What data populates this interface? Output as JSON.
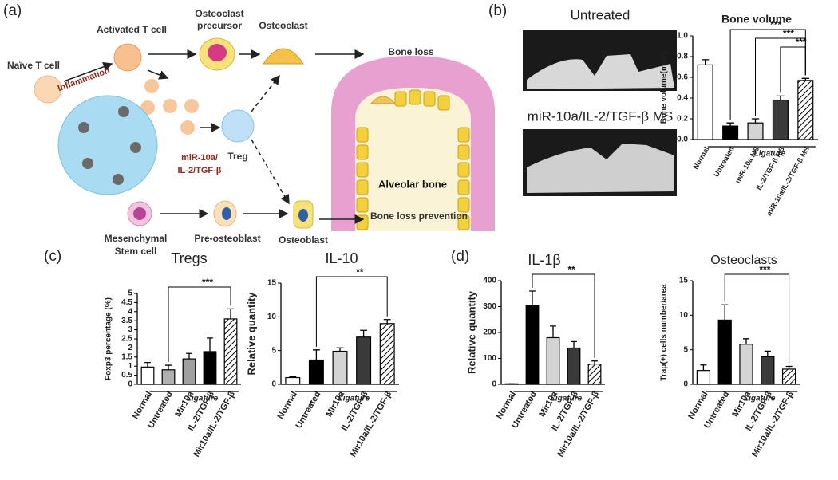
{
  "diagram": {
    "panel_labels": [
      "(a)",
      "(b)",
      "(c)",
      "(d)"
    ],
    "naive_t_cell": "Naïve T cell",
    "activated_t_cell": "Activated T cell",
    "inflammation": "Inflammation",
    "osteoclast_precursor": [
      "Osteoclast",
      "precursor"
    ],
    "osteoclast": "Osteoclast",
    "bone_loss": "Bone loss",
    "treatment": [
      "miR-10a/",
      "IL-2/TGF-β"
    ],
    "treg": "Treg",
    "alveolar_bone": "Alveolar bone",
    "msc": [
      "Mesenchymal",
      "Stem cell"
    ],
    "pre_osteoblast": "Pre-osteoblast",
    "osteoblast": "Osteoblast",
    "bone_loss_prevention": "Bone loss prevention",
    "image_captions": [
      "Untreated",
      "miR-10a/IL-2/TGF-β MS"
    ]
  },
  "chart_data": [
    {
      "type": "bar",
      "title": "Bone volume",
      "y_label": "Bone volume(mm³)",
      "categories": [
        "Normal",
        "Untreated",
        "miR-10a MS",
        "IL-2/TGF-β MS",
        "miR-10a/IL-2/TGF-β MS"
      ],
      "values": [
        0.72,
        0.13,
        0.16,
        0.38,
        0.57
      ],
      "errors": [
        0.05,
        0.03,
        0.04,
        0.04,
        0.02
      ],
      "colors": [
        "#ffffff",
        "#000000",
        "#d4d4d4",
        "#3a3a3a",
        "#ffffff"
      ],
      "hatch": [
        false,
        false,
        false,
        false,
        true
      ],
      "ylim": [
        0,
        1.0
      ],
      "yticks": [
        {
          "value": 0,
          "label": "0.0"
        },
        0.2,
        0.4,
        0.6,
        0.8,
        {
          "value": 1.0,
          "label": "1.0"
        }
      ],
      "group_label": "Ligature",
      "significance": [
        "***",
        "***",
        "***"
      ]
    },
    {
      "type": "bar",
      "title": "Tregs",
      "y_label": "Foxp3 percentage (%)",
      "categories": [
        "Normal",
        "Untreated",
        "Mir10a",
        "IL-2/TGF-β",
        "Mir10a/IL-2/TGF-β"
      ],
      "values": [
        0.95,
        0.8,
        1.4,
        1.8,
        3.6
      ],
      "errors": [
        0.25,
        0.25,
        0.3,
        0.75,
        0.55
      ],
      "colors": [
        "#ffffff",
        "#b0b0b0",
        "#a0a0a0",
        "#000000",
        "#ffffff"
      ],
      "hatch": [
        false,
        false,
        false,
        false,
        true
      ],
      "ylim": [
        0,
        5
      ],
      "yticks": [
        0,
        0.5,
        1,
        1.5,
        2,
        2.5,
        3,
        3.5,
        4,
        4.5,
        5
      ],
      "group_label": "Ligature",
      "significance": [
        "***"
      ]
    },
    {
      "type": "bar",
      "title": "IL-10",
      "y_label": "Relative quantity",
      "categories": [
        "Normal",
        "Untreated",
        "Mir10a",
        "IL-2/TGF-β",
        "Mir10a/IL-2/TGF-β"
      ],
      "values": [
        1.0,
        3.6,
        4.9,
        7.0,
        9.0
      ],
      "errors": [
        0.1,
        1.5,
        0.5,
        1.0,
        0.6
      ],
      "colors": [
        "#ffffff",
        "#000000",
        "#d4d4d4",
        "#3a3a3a",
        "#ffffff"
      ],
      "hatch": [
        false,
        false,
        false,
        false,
        true
      ],
      "ylim": [
        0,
        15
      ],
      "yticks": [
        0,
        5,
        10,
        15
      ],
      "group_label": "Ligature",
      "significance": [
        "**"
      ]
    },
    {
      "type": "bar",
      "title": "IL-1β",
      "y_label": "Relative quantity",
      "categories": [
        "Normal",
        "Untreated",
        "Mir10a",
        "IL-2/TGF-β",
        "Mir10a/IL-2/TGF-β"
      ],
      "values": [
        2,
        305,
        180,
        140,
        78
      ],
      "errors": [
        0,
        55,
        45,
        25,
        12
      ],
      "colors": [
        "#ffffff",
        "#000000",
        "#d4d4d4",
        "#3a3a3a",
        "#ffffff"
      ],
      "hatch": [
        false,
        false,
        false,
        false,
        true
      ],
      "ylim": [
        0,
        400
      ],
      "yticks": [
        0,
        100,
        200,
        300,
        400
      ],
      "group_label": "Ligature",
      "significance": [
        "**"
      ]
    },
    {
      "type": "bar",
      "title": "Osteoclasts",
      "y_label": "Trap(+) cells number/area",
      "categories": [
        "Normal",
        "Untreated",
        "Mir10a",
        "IL-2/TGF-β",
        "Mir10a/IL-2/TGF-β"
      ],
      "values": [
        2.0,
        9.3,
        5.8,
        4.0,
        2.2
      ],
      "errors": [
        0.8,
        2.2,
        0.8,
        0.8,
        0.4
      ],
      "colors": [
        "#ffffff",
        "#000000",
        "#d4d4d4",
        "#3a3a3a",
        "#ffffff"
      ],
      "hatch": [
        false,
        false,
        false,
        false,
        true
      ],
      "ylim": [
        0,
        15
      ],
      "yticks": [
        0,
        5,
        10,
        15
      ],
      "group_label": "Ligature",
      "significance": [
        "***"
      ]
    }
  ]
}
